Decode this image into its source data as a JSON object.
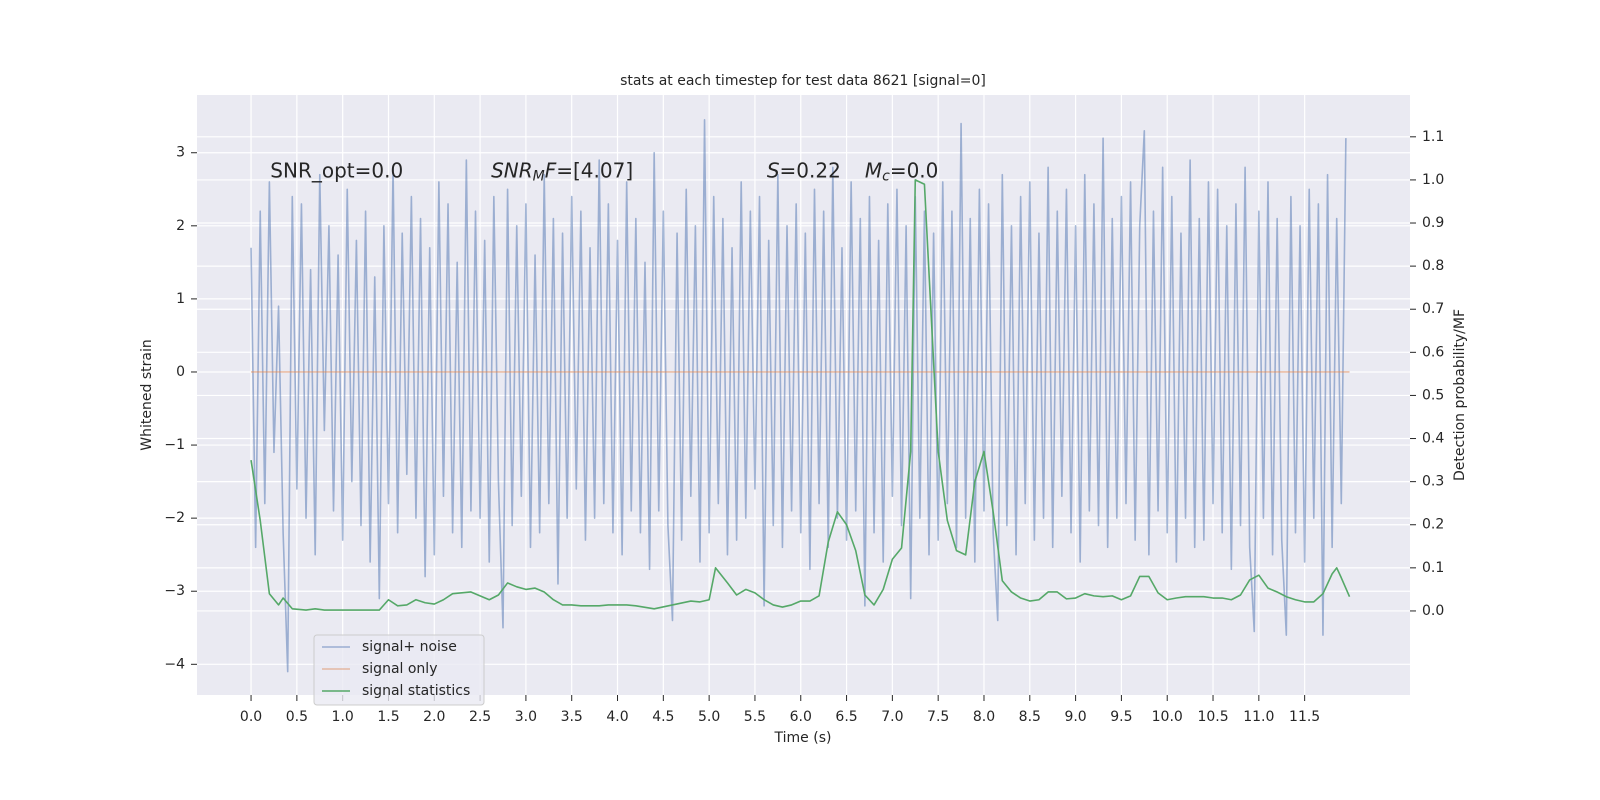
{
  "chart_data": {
    "type": "line",
    "title": "stats at each timestep for test data 8621 [signal=0]",
    "xlabel": "Time (s)",
    "ylabel": "Whitened strain",
    "y2label": "Detection probability/MF",
    "xlim": [
      -0.59,
      12.65
    ],
    "ylim": [
      -4.42,
      3.79
    ],
    "y2lim": [
      -0.195,
      1.197
    ],
    "xticks": [
      {
        "value": 0,
        "label": "0.0"
      },
      0.5,
      {
        "value": 1,
        "label": "1.0"
      },
      1.5,
      {
        "value": 2,
        "label": "2.0"
      },
      2.5,
      {
        "value": 3,
        "label": "3.0"
      },
      3.5,
      {
        "value": 4,
        "label": "4.0"
      },
      4.5,
      {
        "value": 5,
        "label": "5.0"
      },
      5.5,
      {
        "value": 6,
        "label": "6.0"
      },
      6.5,
      {
        "value": 7,
        "label": "7.0"
      },
      7.5,
      {
        "value": 8,
        "label": "8.0"
      },
      8.5,
      {
        "value": 9,
        "label": "9.0"
      },
      9.5,
      {
        "value": 10,
        "label": "10.0"
      },
      10.5,
      {
        "value": 11,
        "label": "11.0"
      },
      11.5
    ],
    "yticks": [
      {
        "value": -4,
        "label": "−4"
      },
      {
        "value": -3,
        "label": "−3"
      },
      {
        "value": -2,
        "label": "−2"
      },
      {
        "value": -1,
        "label": "−1"
      },
      0,
      1,
      2,
      3
    ],
    "y2ticks": [
      {
        "value": 0,
        "label": "0.0"
      },
      0.1,
      0.2,
      0.3,
      0.4,
      0.5,
      0.6,
      0.7,
      0.8,
      0.9,
      {
        "value": 1,
        "label": "1.0"
      },
      1.1
    ],
    "grid": true,
    "legend_loc": "lower left",
    "annotations": [
      {
        "x": 0.21,
        "y": 2.74,
        "parts": [
          {
            "text": "SNR_opt=0.0"
          }
        ]
      },
      {
        "x": 2.62,
        "y": 2.74,
        "parts": [
          {
            "text": "SNR",
            "style": "italic"
          },
          {
            "text": "M",
            "style": "sub"
          },
          {
            "text": "F=[4.07]",
            "style": "italic-first"
          }
        ]
      },
      {
        "x": 5.63,
        "y": 2.74,
        "parts": [
          {
            "text": "S",
            "style": "italic"
          },
          {
            "text": "=0.22"
          },
          {
            "text": "M",
            "style": "italic-gap"
          },
          {
            "text": "c",
            "style": "sub"
          },
          {
            "text": "=0.0"
          }
        ]
      }
    ],
    "series": [
      {
        "name": "signal+ noise",
        "color": "#4c72b0",
        "alpha": 0.5,
        "x": [
          0,
          0.05,
          0.1,
          0.15,
          0.2,
          0.25,
          0.3,
          0.35,
          0.4,
          0.45,
          0.5,
          0.55,
          0.6,
          0.65,
          0.7,
          0.75,
          0.8,
          0.85,
          0.9,
          0.95,
          1,
          1.05,
          1.1,
          1.15,
          1.2,
          1.25,
          1.3,
          1.35,
          1.4,
          1.45,
          1.5,
          1.55,
          1.6,
          1.65,
          1.7,
          1.75,
          1.8,
          1.85,
          1.9,
          1.95,
          2,
          2.05,
          2.1,
          2.15,
          2.2,
          2.25,
          2.3,
          2.35,
          2.4,
          2.45,
          2.5,
          2.55,
          2.6,
          2.65,
          2.7,
          2.75,
          2.8,
          2.85,
          2.9,
          2.95,
          3,
          3.05,
          3.1,
          3.15,
          3.2,
          3.25,
          3.3,
          3.35,
          3.4,
          3.45,
          3.5,
          3.55,
          3.6,
          3.65,
          3.7,
          3.75,
          3.8,
          3.85,
          3.9,
          3.95,
          4,
          4.05,
          4.1,
          4.15,
          4.2,
          4.25,
          4.3,
          4.35,
          4.4,
          4.45,
          4.5,
          4.55,
          4.6,
          4.65,
          4.7,
          4.75,
          4.8,
          4.85,
          4.9,
          4.95,
          5,
          5.05,
          5.1,
          5.15,
          5.2,
          5.25,
          5.3,
          5.35,
          5.4,
          5.45,
          5.5,
          5.55,
          5.6,
          5.65,
          5.7,
          5.75,
          5.8,
          5.85,
          5.9,
          5.95,
          6,
          6.05,
          6.1,
          6.15,
          6.2,
          6.25,
          6.3,
          6.35,
          6.4,
          6.45,
          6.5,
          6.55,
          6.6,
          6.65,
          6.7,
          6.75,
          6.8,
          6.85,
          6.9,
          6.95,
          7,
          7.05,
          7.1,
          7.15,
          7.2,
          7.25,
          7.3,
          7.35,
          7.4,
          7.45,
          7.5,
          7.55,
          7.6,
          7.65,
          7.7,
          7.75,
          7.8,
          7.85,
          7.9,
          7.95,
          8,
          8.05,
          8.1,
          8.15,
          8.2,
          8.25,
          8.3,
          8.35,
          8.4,
          8.45,
          8.5,
          8.55,
          8.6,
          8.65,
          8.7,
          8.75,
          8.8,
          8.85,
          8.9,
          8.95,
          9,
          9.05,
          9.1,
          9.15,
          9.2,
          9.25,
          9.3,
          9.35,
          9.4,
          9.45,
          9.5,
          9.55,
          9.6,
          9.65,
          9.7,
          9.75,
          9.8,
          9.85,
          9.9,
          9.95,
          10,
          10.05,
          10.1,
          10.15,
          10.2,
          10.25,
          10.3,
          10.35,
          10.4,
          10.45,
          10.5,
          10.55,
          10.6,
          10.65,
          10.7,
          10.75,
          10.8,
          10.85,
          10.9,
          10.95,
          11,
          11.05,
          11.1,
          11.15,
          11.2,
          11.25,
          11.3,
          11.35,
          11.4,
          11.45,
          11.5,
          11.55,
          11.6,
          11.65,
          11.7,
          11.75,
          11.8,
          11.85,
          11.9,
          11.95
        ],
        "values": [
          1.7,
          -2.4,
          2.2,
          -1.8,
          2.6,
          -1.1,
          0.9,
          -2.2,
          -4.1,
          2.4,
          -1.6,
          2.3,
          -2.0,
          1.4,
          -2.5,
          2.7,
          -0.8,
          2.0,
          -1.9,
          1.6,
          -2.3,
          2.5,
          -1.5,
          1.8,
          -2.1,
          2.2,
          -2.6,
          1.3,
          -3.1,
          2.0,
          -1.8,
          2.8,
          -2.2,
          1.9,
          -1.4,
          2.4,
          -2.0,
          2.1,
          -2.8,
          1.7,
          -2.5,
          2.6,
          -1.7,
          2.3,
          -2.2,
          1.5,
          -2.4,
          2.9,
          -1.9,
          2.2,
          -2.0,
          1.8,
          -2.6,
          2.4,
          -1.5,
          -3.5,
          2.5,
          -2.1,
          2.0,
          -1.7,
          2.3,
          -2.4,
          1.6,
          -2.2,
          2.7,
          -1.8,
          2.1,
          -2.9,
          1.9,
          -2.0,
          2.4,
          -1.6,
          2.2,
          -2.3,
          1.7,
          -2.0,
          2.9,
          -1.8,
          2.3,
          -2.2,
          1.8,
          -2.5,
          2.6,
          -1.9,
          2.1,
          -2.2,
          1.5,
          -2.7,
          3.0,
          -1.9,
          2.2,
          -2.1,
          -3.4,
          1.9,
          -2.3,
          2.5,
          -1.7,
          2.0,
          -2.6,
          3.45,
          -2.2,
          2.4,
          -1.8,
          2.1,
          -2.5,
          1.7,
          -2.3,
          2.6,
          -2.0,
          2.2,
          -1.6,
          2.4,
          -3.2,
          1.8,
          -2.1,
          2.7,
          -2.4,
          2.0,
          -1.9,
          2.3,
          -2.2,
          1.9,
          -2.7,
          2.5,
          -1.8,
          2.2,
          -2.4,
          2.8,
          -2.0,
          1.7,
          -2.3,
          2.6,
          -1.9,
          2.1,
          -3.2,
          2.4,
          -2.2,
          1.8,
          -2.6,
          2.3,
          -1.7,
          2.5,
          -2.1,
          2.0,
          -3.1,
          2.4,
          -2.0,
          2.2,
          -2.5,
          1.9,
          -2.3,
          2.6,
          -1.8,
          2.2,
          -2.4,
          3.4,
          -2.0,
          2.1,
          -2.6,
          2.5,
          -1.9,
          2.3,
          -2.2,
          -3.4,
          2.7,
          -2.1,
          2.0,
          -2.5,
          2.4,
          -1.8,
          2.6,
          -2.3,
          1.9,
          -2.0,
          2.8,
          -2.4,
          2.2,
          -1.7,
          2.5,
          -2.2,
          2.0,
          -2.6,
          2.7,
          -1.9,
          2.3,
          -2.1,
          3.2,
          -2.4,
          2.1,
          -2.0,
          2.4,
          -1.8,
          2.6,
          -2.3,
          2.0,
          3.3,
          -2.5,
          2.2,
          -1.9,
          2.8,
          -2.2,
          2.4,
          -2.6,
          1.9,
          -2.0,
          2.9,
          -2.4,
          2.1,
          -2.3,
          2.6,
          -1.8,
          2.5,
          -2.2,
          2.0,
          -2.7,
          2.3,
          -2.1,
          2.8,
          -2.4,
          -3.55,
          2.2,
          -2.0,
          2.6,
          -2.5,
          2.1,
          -2.3,
          -3.6,
          2.4,
          -2.2,
          2.0,
          -2.6,
          2.5,
          -2.0,
          2.3,
          -3.6,
          2.7,
          -2.4,
          2.1,
          -1.8,
          3.2
        ]
      },
      {
        "name": "signal only",
        "color": "#dd8452",
        "alpha": 0.5,
        "x": [
          0,
          11.99
        ],
        "values": [
          0,
          0
        ]
      },
      {
        "name": "signal statistics",
        "color": "#55a868",
        "axis": "y2",
        "x": [
          0,
          0.1,
          0.2,
          0.3,
          0.35,
          0.45,
          0.6,
          0.7,
          0.8,
          1.4,
          1.5,
          1.6,
          1.7,
          1.8,
          1.9,
          2.0,
          2.1,
          2.2,
          2.3,
          2.4,
          2.5,
          2.6,
          2.7,
          2.8,
          2.9,
          3.0,
          3.1,
          3.2,
          3.3,
          3.4,
          3.5,
          3.6,
          3.8,
          3.9,
          4.1,
          4.2,
          4.4,
          4.6,
          4.8,
          4.9,
          5.0,
          5.07,
          5.2,
          5.3,
          5.4,
          5.5,
          5.6,
          5.7,
          5.8,
          5.9,
          6.0,
          6.1,
          6.2,
          6.3,
          6.4,
          6.5,
          6.6,
          6.7,
          6.8,
          6.9,
          7.0,
          7.1,
          7.2,
          7.25,
          7.35,
          7.5,
          7.6,
          7.7,
          7.8,
          7.9,
          8.0,
          8.1,
          8.2,
          8.3,
          8.4,
          8.5,
          8.6,
          8.7,
          8.8,
          8.9,
          9.0,
          9.1,
          9.2,
          9.3,
          9.4,
          9.5,
          9.6,
          9.7,
          9.8,
          9.9,
          10.0,
          10.1,
          10.2,
          10.3,
          10.4,
          10.5,
          10.6,
          10.7,
          10.8,
          10.9,
          11.0,
          11.1,
          11.2,
          11.3,
          11.4,
          11.5,
          11.6,
          11.7,
          11.8,
          11.85,
          11.9,
          11.99
        ],
        "values": [
          0.35,
          0.21,
          0.04,
          0.014,
          0.03,
          0.005,
          0.002,
          0.005,
          0.002,
          0.002,
          0.026,
          0.012,
          0.014,
          0.026,
          0.019,
          0.016,
          0.026,
          0.04,
          0.042,
          0.044,
          0.035,
          0.026,
          0.037,
          0.065,
          0.056,
          0.05,
          0.053,
          0.044,
          0.026,
          0.014,
          0.014,
          0.012,
          0.012,
          0.014,
          0.014,
          0.012,
          0.005,
          0.014,
          0.023,
          0.021,
          0.026,
          0.1,
          0.065,
          0.037,
          0.05,
          0.042,
          0.026,
          0.014,
          0.009,
          0.014,
          0.023,
          0.023,
          0.035,
          0.16,
          0.23,
          0.2,
          0.14,
          0.037,
          0.014,
          0.05,
          0.12,
          0.146,
          0.37,
          1.0,
          0.99,
          0.37,
          0.21,
          0.14,
          0.13,
          0.3,
          0.37,
          0.23,
          0.07,
          0.044,
          0.03,
          0.023,
          0.026,
          0.044,
          0.044,
          0.028,
          0.03,
          0.04,
          0.035,
          0.033,
          0.035,
          0.026,
          0.035,
          0.08,
          0.08,
          0.042,
          0.026,
          0.03,
          0.033,
          0.033,
          0.033,
          0.03,
          0.03,
          0.026,
          0.037,
          0.072,
          0.083,
          0.053,
          0.044,
          0.033,
          0.026,
          0.021,
          0.021,
          0.04,
          0.086,
          0.1,
          0.077,
          0.033
        ]
      }
    ]
  }
}
